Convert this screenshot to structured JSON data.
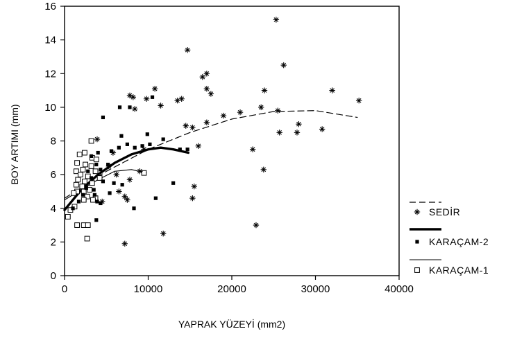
{
  "chart_data": {
    "type": "scatter",
    "xlabel": "YAPRAK YÜZEYİ (mm2)",
    "ylabel": "BOY ARTIMI (mm)",
    "xlim": [
      0,
      40000
    ],
    "ylim": [
      0,
      16
    ],
    "x_ticks": [
      "0",
      "10000",
      "20000",
      "30000",
      "40000"
    ],
    "y_ticks": [
      "0",
      "2",
      "4",
      "6",
      "8",
      "10",
      "12",
      "14",
      "16"
    ],
    "grid": false,
    "legend_position": "right",
    "series": [
      {
        "name": "SEDİR",
        "marker": "asterisk",
        "fit_line": "dashed",
        "points": [
          [
            25300,
            15.2
          ],
          [
            14700,
            13.4
          ],
          [
            26200,
            12.5
          ],
          [
            17000,
            12.0
          ],
          [
            16500,
            11.8
          ],
          [
            10800,
            11.1
          ],
          [
            17000,
            11.1
          ],
          [
            17500,
            10.8
          ],
          [
            7800,
            10.7
          ],
          [
            8200,
            10.6
          ],
          [
            9800,
            10.5
          ],
          [
            14000,
            10.5
          ],
          [
            13500,
            10.4
          ],
          [
            23900,
            11.0
          ],
          [
            32000,
            11.0
          ],
          [
            35200,
            10.4
          ],
          [
            8400,
            9.9
          ],
          [
            11500,
            10.1
          ],
          [
            23500,
            10.0
          ],
          [
            25500,
            9.8
          ],
          [
            21000,
            9.7
          ],
          [
            19000,
            9.5
          ],
          [
            17000,
            9.1
          ],
          [
            14500,
            8.9
          ],
          [
            15300,
            8.8
          ],
          [
            28000,
            9.0
          ],
          [
            30800,
            8.7
          ],
          [
            25700,
            8.5
          ],
          [
            27800,
            8.5
          ],
          [
            16000,
            7.7
          ],
          [
            22500,
            7.5
          ],
          [
            23800,
            6.3
          ],
          [
            15500,
            5.3
          ],
          [
            15300,
            4.6
          ],
          [
            11800,
            2.5
          ],
          [
            22900,
            3.0
          ],
          [
            7200,
            1.9
          ],
          [
            7800,
            5.7
          ],
          [
            7200,
            4.7
          ],
          [
            7500,
            4.5
          ],
          [
            6500,
            5.0
          ],
          [
            6200,
            6.0
          ],
          [
            5300,
            6.5
          ],
          [
            3900,
            8.1
          ],
          [
            4500,
            4.4
          ],
          [
            9000,
            6.2
          ],
          [
            9500,
            7.5
          ],
          [
            5800,
            7.3
          ]
        ],
        "fit": [
          [
            0,
            4.6
          ],
          [
            5000,
            6.2
          ],
          [
            10000,
            7.5
          ],
          [
            15000,
            8.5
          ],
          [
            20000,
            9.3
          ],
          [
            25000,
            9.75
          ],
          [
            30000,
            9.8
          ],
          [
            35000,
            9.4
          ]
        ]
      },
      {
        "name": "KARAÇAM-2",
        "marker": "filled-square",
        "fit_line": "thick",
        "points": [
          [
            4600,
            9.4
          ],
          [
            6600,
            10.0
          ],
          [
            7800,
            10.0
          ],
          [
            10500,
            10.6
          ],
          [
            9900,
            8.4
          ],
          [
            11800,
            8.1
          ],
          [
            6800,
            8.3
          ],
          [
            7500,
            7.8
          ],
          [
            8400,
            7.6
          ],
          [
            10200,
            7.8
          ],
          [
            9300,
            7.7
          ],
          [
            13800,
            7.5
          ],
          [
            14700,
            7.5
          ],
          [
            6500,
            7.6
          ],
          [
            5600,
            7.4
          ],
          [
            4000,
            7.3
          ],
          [
            3200,
            7.1
          ],
          [
            5200,
            6.6
          ],
          [
            3800,
            6.6
          ],
          [
            4300,
            6.3
          ],
          [
            2800,
            6.2
          ],
          [
            3200,
            5.8
          ],
          [
            4600,
            5.6
          ],
          [
            5900,
            5.5
          ],
          [
            6900,
            5.4
          ],
          [
            2600,
            5.2
          ],
          [
            3500,
            5.1
          ],
          [
            2200,
            4.8
          ],
          [
            3600,
            4.8
          ],
          [
            5400,
            4.9
          ],
          [
            3900,
            4.4
          ],
          [
            1700,
            4.4
          ],
          [
            4300,
            4.3
          ],
          [
            8300,
            4.0
          ],
          [
            10900,
            4.6
          ],
          [
            13000,
            5.5
          ],
          [
            3800,
            3.3
          ],
          [
            1000,
            4.0
          ]
        ],
        "fit": [
          [
            0,
            3.9
          ],
          [
            2000,
            5.1
          ],
          [
            4000,
            6.0
          ],
          [
            6000,
            6.7
          ],
          [
            8000,
            7.2
          ],
          [
            10000,
            7.5
          ],
          [
            11500,
            7.6
          ],
          [
            13000,
            7.5
          ],
          [
            14800,
            7.3
          ]
        ]
      },
      {
        "name": "KARAÇAM-1",
        "marker": "open-square",
        "fit_line": "thin",
        "points": [
          [
            3200,
            8.0
          ],
          [
            1800,
            7.2
          ],
          [
            2400,
            7.3
          ],
          [
            3300,
            7.0
          ],
          [
            3800,
            6.9
          ],
          [
            1500,
            6.7
          ],
          [
            2500,
            6.6
          ],
          [
            3200,
            6.5
          ],
          [
            1400,
            6.2
          ],
          [
            2200,
            6.3
          ],
          [
            3700,
            6.2
          ],
          [
            1900,
            6.0
          ],
          [
            2800,
            5.9
          ],
          [
            1600,
            5.7
          ],
          [
            2400,
            5.6
          ],
          [
            3300,
            5.5
          ],
          [
            1400,
            5.4
          ],
          [
            2100,
            5.3
          ],
          [
            1500,
            5.0
          ],
          [
            2300,
            5.0
          ],
          [
            3000,
            5.1
          ],
          [
            1100,
            4.9
          ],
          [
            2700,
            4.7
          ],
          [
            3700,
            4.6
          ],
          [
            2300,
            4.5
          ],
          [
            3400,
            4.5
          ],
          [
            1200,
            4.1
          ],
          [
            700,
            3.9
          ],
          [
            400,
            3.5
          ],
          [
            1500,
            3.0
          ],
          [
            2300,
            3.0
          ],
          [
            2800,
            3.0
          ],
          [
            2700,
            2.2
          ],
          [
            9500,
            6.1
          ],
          [
            4200,
            5.8
          ]
        ],
        "fit": [
          [
            0,
            4.5
          ],
          [
            2000,
            5.1
          ],
          [
            4000,
            5.7
          ],
          [
            6000,
            6.2
          ],
          [
            8000,
            6.3
          ],
          [
            9800,
            6.1
          ]
        ]
      }
    ]
  }
}
